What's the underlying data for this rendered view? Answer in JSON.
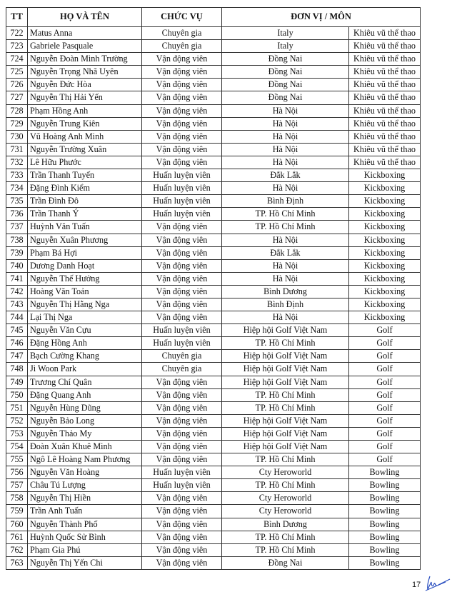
{
  "header": {
    "tt": "TT",
    "name": "HỌ VÀ TÊN",
    "role": "CHỨC VỤ",
    "unit": "ĐƠN VỊ / MÔN"
  },
  "rows": [
    [
      "722",
      "Matus Anna",
      "Chuyên gia",
      "Italy",
      "Khiêu vũ thể thao"
    ],
    [
      "723",
      "Gabriele Pasquale",
      "Chuyên gia",
      "Italy",
      "Khiêu vũ thể thao"
    ],
    [
      "724",
      "Nguyễn Đoàn Minh Trường",
      "Vận động viên",
      "Đồng Nai",
      "Khiêu vũ thể thao"
    ],
    [
      "725",
      "Nguyễn Trọng Nhã Uyên",
      "Vận động viên",
      "Đồng Nai",
      "Khiêu vũ thể thao"
    ],
    [
      "726",
      "Nguyễn Đức Hòa",
      "Vận động viên",
      "Đồng Nai",
      "Khiêu vũ thể thao"
    ],
    [
      "727",
      "Nguyễn Thị Hải Yến",
      "Vận động viên",
      "Đồng Nai",
      "Khiêu vũ thể thao"
    ],
    [
      "728",
      "Phạm Hồng Anh",
      "Vận động viên",
      "Hà Nội",
      "Khiêu vũ thể thao"
    ],
    [
      "729",
      "Nguyễn Trung Kiên",
      "Vận động viên",
      "Hà Nội",
      "Khiêu vũ thể thao"
    ],
    [
      "730",
      "Vũ Hoàng Anh Minh",
      "Vận động viên",
      "Hà Nội",
      "Khiêu vũ thể thao"
    ],
    [
      "731",
      "Nguyễn Trường Xuân",
      "Vận động viên",
      "Hà Nội",
      "Khiêu vũ thể thao"
    ],
    [
      "732",
      "Lê Hữu Phước",
      "Vận động viên",
      "Hà Nội",
      "Khiêu vũ thể thao"
    ],
    [
      "733",
      "Trần Thanh Tuyến",
      "Huấn luyện viên",
      "Đắk Lắk",
      "Kickboxing"
    ],
    [
      "734",
      "Đặng Đình Kiểm",
      "Huấn luyện viên",
      "Hà Nội",
      "Kickboxing"
    ],
    [
      "735",
      "Trần Đình Đô",
      "Huấn luyện viên",
      "Bình Định",
      "Kickboxing"
    ],
    [
      "736",
      "Trần Thanh Ý",
      "Huấn luyện viên",
      "TP. Hồ Chí Minh",
      "Kickboxing"
    ],
    [
      "737",
      "Huỳnh Văn Tuấn",
      "Vận động viên",
      "TP. Hồ Chí Minh",
      "Kickboxing"
    ],
    [
      "738",
      "Nguyễn Xuân Phương",
      "Vận động viên",
      "Hà Nội",
      "Kickboxing"
    ],
    [
      "739",
      "Phạm Bá Hợi",
      "Vận động viên",
      "Đắk Lắk",
      "Kickboxing"
    ],
    [
      "740",
      "Dương Danh Hoạt",
      "Vận động viên",
      "Hà Nội",
      "Kickboxing"
    ],
    [
      "741",
      "Nguyễn Thế Hưởng",
      "Vận động viên",
      "Hà Nội",
      "Kickboxing"
    ],
    [
      "742",
      "Hoàng Văn Toản",
      "Vận động viên",
      "Bình Dương",
      "Kickboxing"
    ],
    [
      "743",
      "Nguyễn Thị Hằng Nga",
      "Vận động viên",
      "Bình Định",
      "Kickboxing"
    ],
    [
      "744",
      "Lại Thị Nga",
      "Vận động viên",
      "Hà Nội",
      "Kickboxing"
    ],
    [
      "745",
      "Nguyễn Văn Cựu",
      "Huấn luyện viên",
      "Hiệp hội Golf Việt Nam",
      "Golf"
    ],
    [
      "746",
      "Đặng Hồng Anh",
      "Huấn luyện viên",
      "TP. Hồ Chí Minh",
      "Golf"
    ],
    [
      "747",
      "Bạch Cường Khang",
      "Chuyên gia",
      "Hiệp hội Golf Việt Nam",
      "Golf"
    ],
    [
      "748",
      "Ji Woon Park",
      "Chuyên gia",
      "Hiệp hội Golf Việt Nam",
      "Golf"
    ],
    [
      "749",
      "Trương Chí Quân",
      "Vận động viên",
      "Hiệp hội Golf Việt Nam",
      "Golf"
    ],
    [
      "750",
      "Đặng Quang Anh",
      "Vận động viên",
      "TP. Hồ Chí Minh",
      "Golf"
    ],
    [
      "751",
      "Nguyễn Hùng Dũng",
      "Vận động viên",
      "TP. Hồ Chí Minh",
      "Golf"
    ],
    [
      "752",
      "Nguyễn Bảo Long",
      "Vận động viên",
      "Hiệp hội Golf Việt Nam",
      "Golf"
    ],
    [
      "753",
      "Nguyễn Thảo My",
      "Vận động viên",
      "Hiệp hội Golf Việt Nam",
      "Golf"
    ],
    [
      "754",
      "Đoàn Xuân Khuê Minh",
      "Vận động viên",
      "Hiệp hội Golf Việt Nam",
      "Golf"
    ],
    [
      "755",
      "Ngô Lê Hoàng Nam Phương",
      "Vận động viên",
      "TP. Hồ Chí Minh",
      "Golf"
    ],
    [
      "756",
      "Nguyễn Văn Hoàng",
      "Huấn luyện viên",
      "Cty Heroworld",
      "Bowling"
    ],
    [
      "757",
      "Châu Tú Lượng",
      "Huấn luyện viên",
      "TP. Hồ Chí Minh",
      "Bowling"
    ],
    [
      "758",
      "Nguyễn Thị Hiền",
      "Vận động viên",
      "Cty Heroworld",
      "Bowling"
    ],
    [
      "759",
      "Trần Anh Tuấn",
      "Vận động viên",
      "Cty Heroworld",
      "Bowling"
    ],
    [
      "760",
      "Nguyễn Thành Phố",
      "Vận động viên",
      "Bình Dương",
      "Bowling"
    ],
    [
      "761",
      "Huỳnh Quốc Sử Bình",
      "Vận động viên",
      "TP. Hồ Chí Minh",
      "Bowling"
    ],
    [
      "762",
      "Phạm Gia Phú",
      "Vận động viên",
      "TP. Hồ Chí Minh",
      "Bowling"
    ],
    [
      "763",
      "Nguyễn Thị Yến Chi",
      "Vận động viên",
      "Đồng Nai",
      "Bowling"
    ]
  ],
  "footer": {
    "page_number": "17",
    "signature_color": "#2a4fc0"
  }
}
